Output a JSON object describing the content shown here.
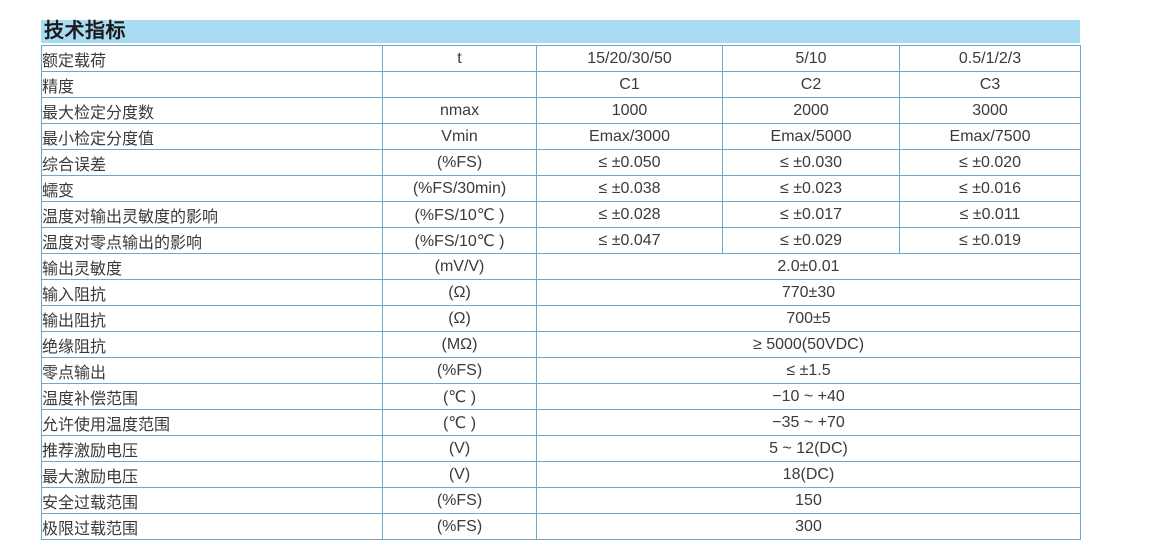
{
  "section": {
    "title": "技术指标"
  },
  "colors": {
    "title_band_bg": "#a9dbf3",
    "table_border": "#6fa8c9",
    "body_text": "#3a3a3a",
    "title_text": "#1a1a1a",
    "page_bg": "#ffffff"
  },
  "table": {
    "rows": [
      {
        "label": "额定载荷",
        "unit": "t",
        "merged": false,
        "values": [
          "15/20/30/50",
          "5/10",
          "0.5/1/2/3"
        ]
      },
      {
        "label": "精度",
        "unit": "",
        "merged": false,
        "values": [
          "C1",
          "C2",
          "C3"
        ]
      },
      {
        "label": "最大检定分度数",
        "unit": "nmax",
        "merged": false,
        "values": [
          "1000",
          "2000",
          "3000"
        ]
      },
      {
        "label": "最小检定分度值",
        "unit": "Vmin",
        "merged": false,
        "values": [
          "Emax/3000",
          "Emax/5000",
          "Emax/7500"
        ]
      },
      {
        "label": "综合误差",
        "unit": "(%FS)",
        "merged": false,
        "values": [
          "≤ ±0.050",
          "≤ ±0.030",
          "≤ ±0.020"
        ]
      },
      {
        "label": "蠕变",
        "unit": "(%FS/30min)",
        "merged": false,
        "values": [
          "≤ ±0.038",
          "≤ ±0.023",
          "≤ ±0.016"
        ]
      },
      {
        "label": "温度对输出灵敏度的影响",
        "unit": "(%FS/10℃ )",
        "merged": false,
        "values": [
          "≤ ±0.028",
          "≤ ±0.017",
          "≤ ±0.011"
        ]
      },
      {
        "label": "温度对零点输出的影响",
        "unit": "(%FS/10℃ )",
        "merged": false,
        "values": [
          "≤ ±0.047",
          "≤ ±0.029",
          "≤ ±0.019"
        ]
      },
      {
        "label": "输出灵敏度",
        "unit": "(mV/V)",
        "merged": true,
        "values": [
          "2.0±0.01"
        ]
      },
      {
        "label": "输入阻抗",
        "unit": "(Ω)",
        "merged": true,
        "values": [
          "770±30"
        ]
      },
      {
        "label": "输出阻抗",
        "unit": "(Ω)",
        "merged": true,
        "values": [
          "700±5"
        ]
      },
      {
        "label": "绝缘阻抗",
        "unit": "(MΩ)",
        "merged": true,
        "values": [
          "≥ 5000(50VDC)"
        ]
      },
      {
        "label": "零点输出",
        "unit": "(%FS)",
        "merged": true,
        "values": [
          "≤ ±1.5"
        ]
      },
      {
        "label": "温度补偿范围",
        "unit": "(℃ )",
        "merged": true,
        "values": [
          "−10 ~ +40"
        ]
      },
      {
        "label": "允许使用温度范围",
        "unit": "(℃ )",
        "merged": true,
        "values": [
          "−35 ~ +70"
        ]
      },
      {
        "label": "推荐激励电压",
        "unit": "(V)",
        "merged": true,
        "values": [
          "5 ~ 12(DC)"
        ]
      },
      {
        "label": "最大激励电压",
        "unit": "(V)",
        "merged": true,
        "values": [
          "18(DC)"
        ]
      },
      {
        "label": "安全过载范围",
        "unit": "(%FS)",
        "merged": true,
        "values": [
          "150"
        ]
      },
      {
        "label": "极限过载范围",
        "unit": "(%FS)",
        "merged": true,
        "values": [
          "300"
        ]
      }
    ]
  }
}
